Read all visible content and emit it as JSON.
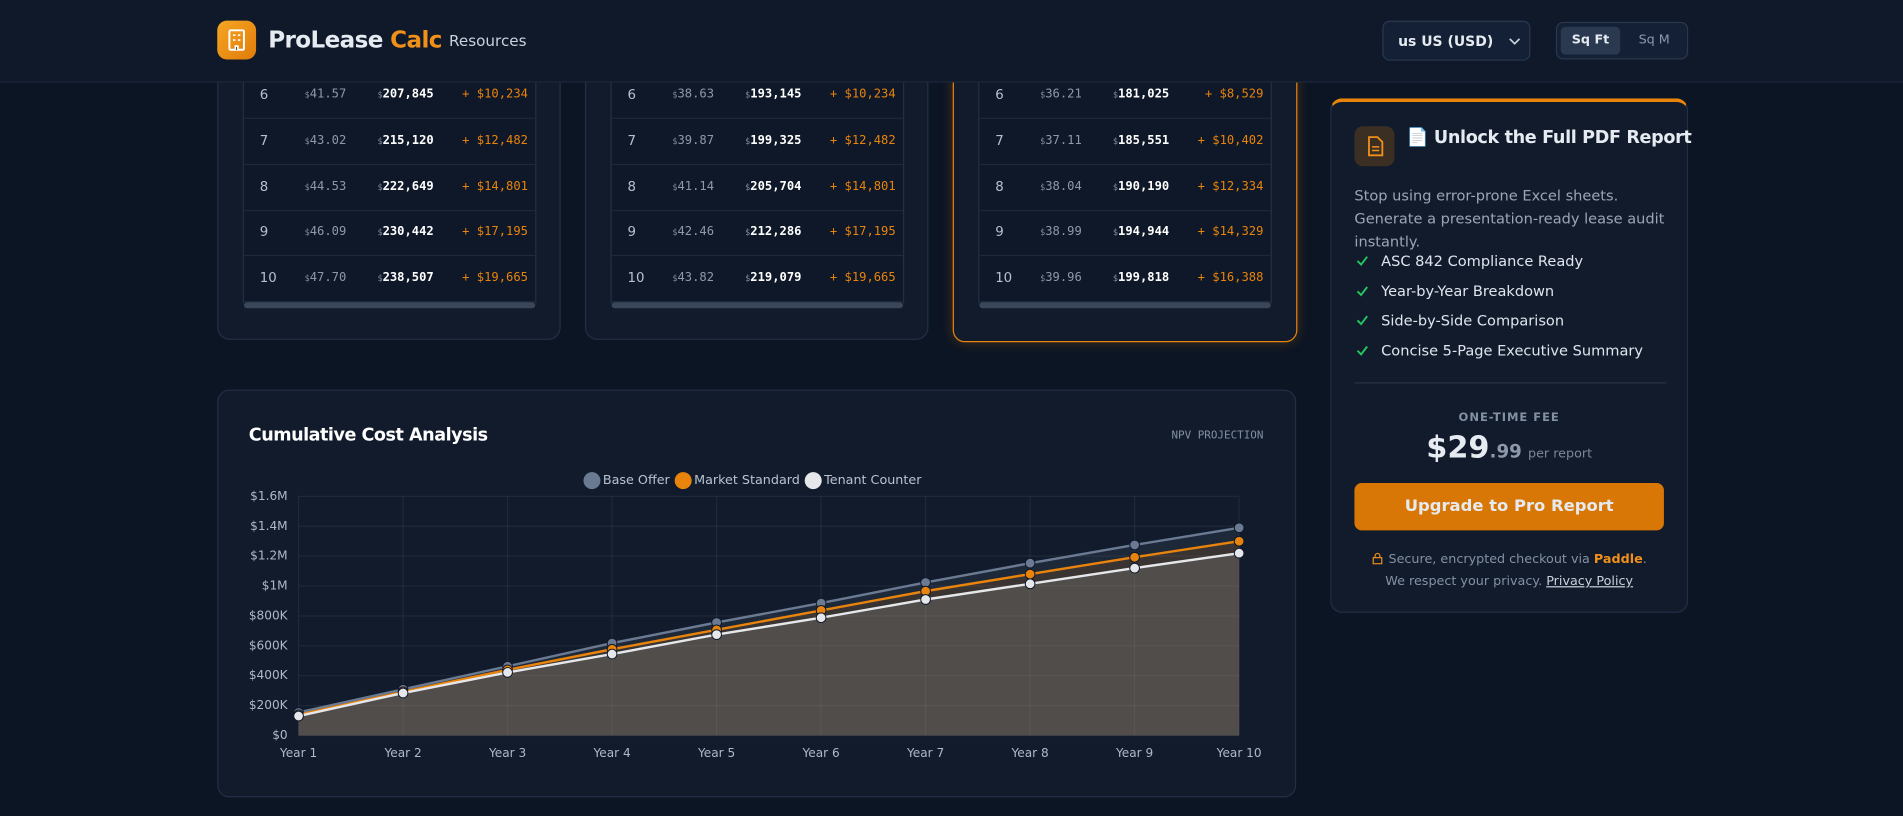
{
  "header": {
    "brand": "ProLease",
    "brand_accent": "Calc",
    "nav": "Resources",
    "currency": "us US (USD)",
    "units": [
      "Sq Ft",
      "Sq M"
    ]
  },
  "tables": [
    {
      "rows": [
        [
          "6",
          "$41.57",
          "$207,845",
          "+ $10,234"
        ],
        [
          "7",
          "$43.02",
          "$215,120",
          "+ $12,482"
        ],
        [
          "8",
          "$44.53",
          "$222,649",
          "+ $14,801"
        ],
        [
          "9",
          "$46.09",
          "$230,442",
          "+ $17,195"
        ],
        [
          "10",
          "$47.70",
          "$238,507",
          "+ $19,665"
        ]
      ]
    },
    {
      "rows": [
        [
          "6",
          "$38.63",
          "$193,145",
          "+ $10,234"
        ],
        [
          "7",
          "$39.87",
          "$199,325",
          "+ $12,482"
        ],
        [
          "8",
          "$41.14",
          "$205,704",
          "+ $14,801"
        ],
        [
          "9",
          "$42.46",
          "$212,286",
          "+ $17,195"
        ],
        [
          "10",
          "$43.82",
          "$219,079",
          "+ $19,665"
        ]
      ]
    },
    {
      "rows": [
        [
          "6",
          "$36.21",
          "$181,025",
          "+ $8,529"
        ],
        [
          "7",
          "$37.11",
          "$185,551",
          "+ $10,402"
        ],
        [
          "8",
          "$38.04",
          "$190,190",
          "+ $12,334"
        ],
        [
          "9",
          "$38.99",
          "$194,944",
          "+ $14,329"
        ],
        [
          "10",
          "$39.96",
          "$199,818",
          "+ $16,388"
        ]
      ]
    }
  ],
  "report_card": {
    "title": "📄 Unlock the Full PDF Report",
    "description": "Stop using error-prone Excel sheets. Generate a presentation-ready lease audit instantly.",
    "features": [
      "ASC 842 Compliance Ready",
      "Year-by-Year Breakdown",
      "Side-by-Side Comparison",
      "Concise 5-Page Executive Summary"
    ],
    "fee_label": "ONE-TIME FEE",
    "price": "$29",
    "price_cents": ".99",
    "price_unit": "per report",
    "button": "Upgrade to Pro Report",
    "secure_text": "Secure, encrypted checkout via",
    "secure_link": "Paddle",
    "secure_end": ".",
    "privacy_text": "We respect your privacy.",
    "privacy_link": "Privacy Policy"
  },
  "chart_data": {
    "type": "line",
    "title": "Cumulative Cost Analysis",
    "subtitle": "NPV PROJECTION",
    "fill": true,
    "grid": true,
    "categories": [
      "Year 1",
      "Year 2",
      "Year 3",
      "Year 4",
      "Year 5",
      "Year 6",
      "Year 7",
      "Year 8",
      "Year 9",
      "Year 10"
    ],
    "series": [
      {
        "name": "Base Offer",
        "color": "#6b7a93",
        "values": [
          154000,
          309000,
          463000,
          618000,
          756000,
          886000,
          1024000,
          1153000,
          1275000,
          1390000
        ]
      },
      {
        "name": "Market Standard",
        "color": "#e8830c",
        "values": [
          138000,
          292000,
          439000,
          577000,
          707000,
          837000,
          966000,
          1080000,
          1193000,
          1300000
        ]
      },
      {
        "name": "Tenant Counter",
        "color": "#e5e7eb",
        "values": [
          130000,
          284000,
          422000,
          545000,
          675000,
          788000,
          910000,
          1015000,
          1120000,
          1220000
        ]
      }
    ],
    "ylim": [
      0,
      1600000
    ],
    "yticks": [
      {
        "value": 0,
        "label": "$0"
      },
      {
        "value": 200000,
        "label": "$200K"
      },
      {
        "value": 400000,
        "label": "$400K"
      },
      {
        "value": 600000,
        "label": "$600K"
      },
      {
        "value": 800000,
        "label": "$800K"
      },
      {
        "value": 1000000,
        "label": "$1M"
      },
      {
        "value": 1200000,
        "label": "$1.2M"
      },
      {
        "value": 1400000,
        "label": "$1.4M"
      },
      {
        "value": 1600000,
        "label": "$1.6M"
      }
    ]
  }
}
